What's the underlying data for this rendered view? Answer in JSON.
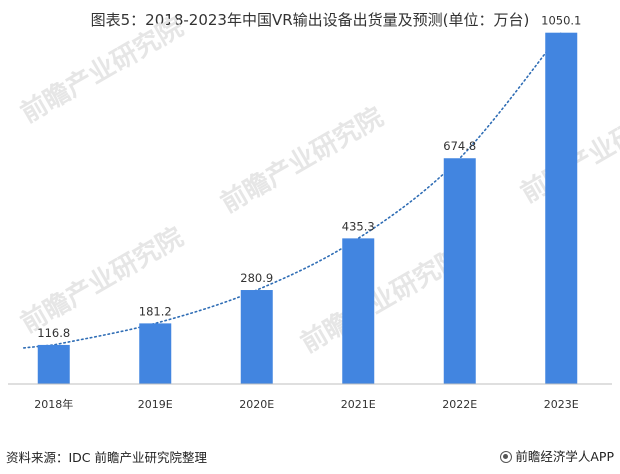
{
  "chart_data": {
    "type": "bar",
    "title": "图表5：2018-2023年中国VR输出设备出货量及预测(单位：万台)",
    "categories": [
      "2018年",
      "2019E",
      "2020E",
      "2021E",
      "2022E",
      "2023E"
    ],
    "values": [
      116.8,
      181.2,
      280.9,
      435.3,
      674.8,
      1050.1
    ],
    "value_labels": [
      "116.8",
      "181.2",
      "280.9",
      "435.3",
      "674.8",
      "1050.1"
    ],
    "ylim": [
      0,
      1100
    ],
    "grid": false,
    "legend": "none",
    "trendline": "dotted-exponential",
    "colors": {
      "bar": "#4285e0",
      "trend": "#2f6db5",
      "axis": "#bfbfbf"
    }
  },
  "footer": {
    "source": "资料来源：IDC 前瞻产业研究院整理",
    "brand": "前瞻经济学人APP"
  },
  "watermark": {
    "text": "前瞻产业研究院"
  }
}
